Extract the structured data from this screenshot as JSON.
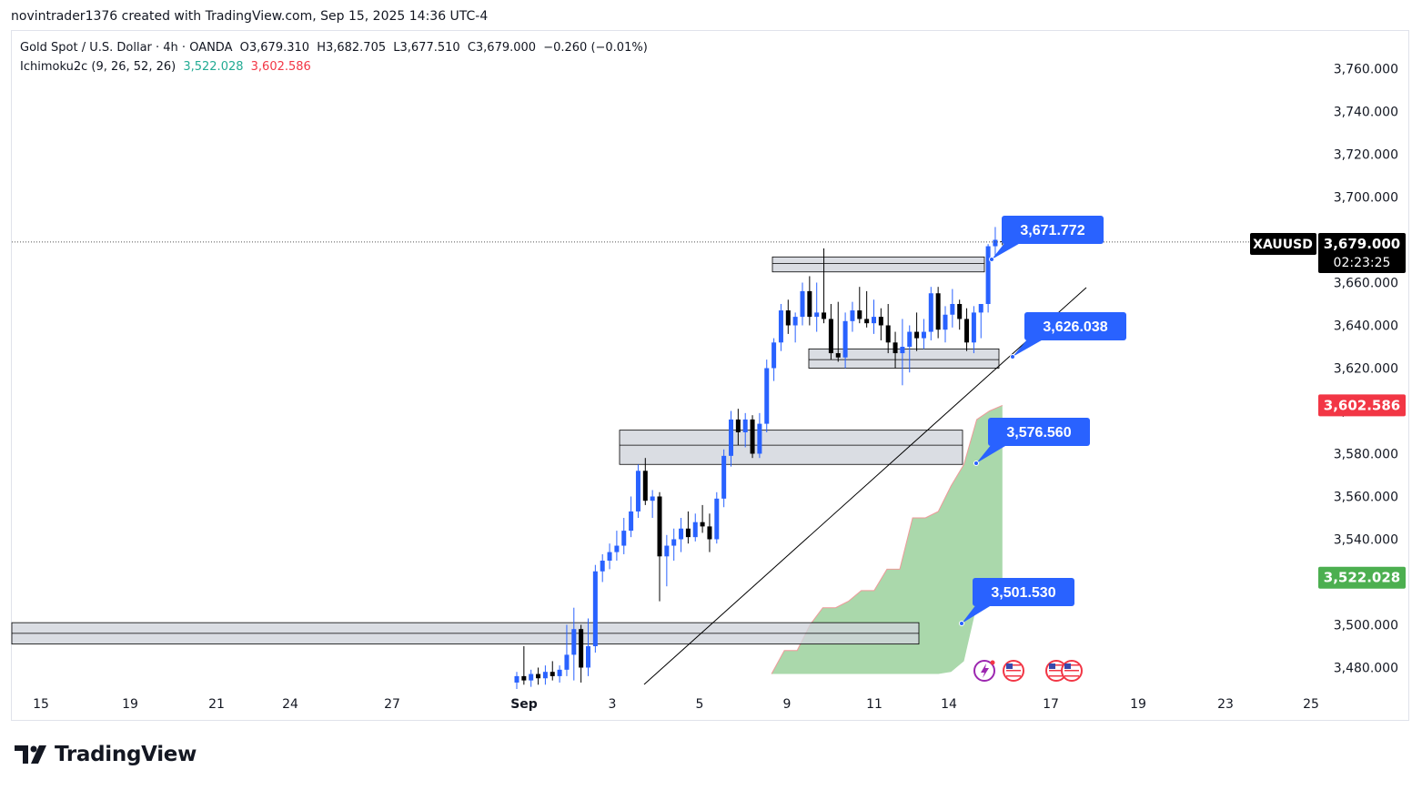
{
  "header": {
    "attribution": "novintrader1376 created with TradingView.com, Sep 15, 2025 14:36 UTC-4"
  },
  "legend": {
    "symbol_line": "Gold Spot / U.S. Dollar · 4h · OANDA",
    "open": "O3,679.310",
    "high": "H3,682.705",
    "low": "L3,677.510",
    "close": "C3,679.000",
    "change": "−0.260 (−0.01%)",
    "indicator": "Ichimoku2c (9, 26, 52, 26)",
    "ind_value_1": "3,522.028",
    "ind_value_2": "3,602.586"
  },
  "footer": {
    "brand": "TradingView"
  },
  "colors": {
    "up": "#2962ff",
    "down": "#000000",
    "cloud_fill": "#a5d6a7",
    "cloud_edge": "#ef9a9a",
    "zone_fill": "#d1d4dc",
    "callout": "#2962ff",
    "red_label": "#f23645",
    "green_label": "#4caf50"
  },
  "chart_data": {
    "type": "candlestick",
    "symbol": "XAUUSD",
    "timeframe": "4h",
    "ylim": [
      3470,
      3770
    ],
    "y_ticks": [
      3480,
      3500,
      3520,
      3540,
      3560,
      3580,
      3600,
      3620,
      3640,
      3660,
      3680,
      3700,
      3720,
      3740,
      3760
    ],
    "y_tick_labels": [
      "3,480.000",
      "3,500.000",
      "3,520.000",
      "3,540.000",
      "3,560.000",
      "3,580.000",
      "3,600.000",
      "3,620.000",
      "3,640.000",
      "3,660.000",
      "3,680.000",
      "3,700.000",
      "3,720.000",
      "3,740.000",
      "3,760.000"
    ],
    "x_ticks": [
      "15",
      "19",
      "21",
      "24",
      "27",
      "Sep",
      "3",
      "5",
      "9",
      "11",
      "14",
      "17",
      "19",
      "23",
      "25"
    ],
    "x_ticks_date": [
      "2025-08-15",
      "2025-08-19",
      "2025-08-21",
      "2025-08-24",
      "2025-08-27",
      "2025-09-01",
      "2025-09-03",
      "2025-09-05",
      "2025-09-09",
      "2025-09-11",
      "2025-09-14",
      "2025-09-17",
      "2025-09-19",
      "2025-09-23",
      "2025-09-25"
    ],
    "price_label": {
      "symbol": "XAUUSD",
      "price": "3,679.000",
      "countdown": "02:23:25",
      "value": 3679.0
    },
    "indicator_labels": [
      {
        "text": "3,602.586",
        "value": 3602.586,
        "color": "red"
      },
      {
        "text": "3,522.028",
        "value": 3522.028,
        "color": "green"
      }
    ],
    "candles": [
      [
        3473,
        3478,
        3470,
        3476
      ],
      [
        3476,
        3490,
        3472,
        3474
      ],
      [
        3474,
        3479,
        3471,
        3477
      ],
      [
        3477,
        3480,
        3472,
        3475
      ],
      [
        3475,
        3481,
        3472,
        3478
      ],
      [
        3478,
        3483,
        3474,
        3476
      ],
      [
        3476,
        3481,
        3473,
        3479
      ],
      [
        3479,
        3500,
        3476,
        3486
      ],
      [
        3486,
        3508,
        3474,
        3498
      ],
      [
        3498,
        3500,
        3473,
        3480
      ],
      [
        3480,
        3503,
        3476,
        3490
      ],
      [
        3490,
        3528,
        3487,
        3525
      ],
      [
        3525,
        3533,
        3520,
        3530
      ],
      [
        3530,
        3538,
        3526,
        3534
      ],
      [
        3534,
        3544,
        3530,
        3537
      ],
      [
        3537,
        3550,
        3533,
        3544
      ],
      [
        3544,
        3560,
        3541,
        3553
      ],
      [
        3553,
        3575,
        3550,
        3572
      ],
      [
        3572,
        3578,
        3556,
        3558
      ],
      [
        3558,
        3563,
        3550,
        3560
      ],
      [
        3560,
        3562,
        3511,
        3532
      ],
      [
        3532,
        3542,
        3518,
        3537
      ],
      [
        3537,
        3545,
        3530,
        3540
      ],
      [
        3540,
        3550,
        3534,
        3545
      ],
      [
        3545,
        3553,
        3538,
        3541
      ],
      [
        3541,
        3552,
        3539,
        3548
      ],
      [
        3548,
        3556,
        3543,
        3546
      ],
      [
        3546,
        3552,
        3534,
        3540
      ],
      [
        3540,
        3562,
        3538,
        3559
      ],
      [
        3559,
        3582,
        3555,
        3579
      ],
      [
        3579,
        3600,
        3574,
        3596
      ],
      [
        3596,
        3601,
        3584,
        3590
      ],
      [
        3590,
        3599,
        3583,
        3596
      ],
      [
        3596,
        3598,
        3578,
        3580
      ],
      [
        3580,
        3599,
        3578,
        3594
      ],
      [
        3594,
        3624,
        3590,
        3620
      ],
      [
        3620,
        3634,
        3614,
        3632
      ],
      [
        3632,
        3650,
        3628,
        3647
      ],
      [
        3647,
        3652,
        3636,
        3640
      ],
      [
        3640,
        3646,
        3632,
        3644
      ],
      [
        3644,
        3660,
        3640,
        3656
      ],
      [
        3656,
        3663,
        3640,
        3644
      ],
      [
        3644,
        3660,
        3637,
        3646
      ],
      [
        3646,
        3676,
        3641,
        3643
      ],
      [
        3643,
        3650,
        3624,
        3627
      ],
      [
        3627,
        3651,
        3623,
        3625
      ],
      [
        3625,
        3646,
        3620,
        3642
      ],
      [
        3642,
        3651,
        3637,
        3647
      ],
      [
        3647,
        3658,
        3641,
        3643
      ],
      [
        3643,
        3656,
        3639,
        3641
      ],
      [
        3641,
        3652,
        3636,
        3644
      ],
      [
        3644,
        3648,
        3633,
        3640
      ],
      [
        3640,
        3650,
        3627,
        3632
      ],
      [
        3632,
        3637,
        3620,
        3627
      ],
      [
        3627,
        3643,
        3612,
        3630
      ],
      [
        3630,
        3640,
        3618,
        3637
      ],
      [
        3637,
        3646,
        3628,
        3634
      ],
      [
        3634,
        3643,
        3629,
        3637
      ],
      [
        3637,
        3658,
        3633,
        3655
      ],
      [
        3655,
        3658,
        3634,
        3638
      ],
      [
        3638,
        3649,
        3632,
        3645
      ],
      [
        3645,
        3657,
        3639,
        3650
      ],
      [
        3650,
        3652,
        3638,
        3643
      ],
      [
        3643,
        3648,
        3628,
        3632
      ],
      [
        3632,
        3649,
        3627,
        3646
      ],
      [
        3646,
        3650,
        3634,
        3650
      ],
      [
        3650,
        3678,
        3646,
        3677
      ],
      [
        3677,
        3686,
        3672,
        3680
      ],
      [
        3679.31,
        3682.705,
        3677.51,
        3679.0
      ]
    ],
    "zones": [
      {
        "label": "zone-top",
        "y1": 3665,
        "y2": 3672,
        "mid": 3669
      },
      {
        "label": "zone-mid",
        "y1": 3620,
        "y2": 3629,
        "mid": 3624
      },
      {
        "label": "zone-low",
        "y1": 3575,
        "y2": 3591,
        "mid": 3584
      },
      {
        "label": "zone-bottom",
        "y1": 3491,
        "y2": 3501,
        "mid": 3496
      }
    ],
    "trendline": [
      [
        3475,
        3475
      ],
      [
        3640,
        3660
      ]
    ],
    "cloud": {
      "upper": [
        3477,
        3488,
        3488,
        3500,
        3508,
        3508,
        3511,
        3516,
        3516,
        3526,
        3526,
        3550,
        3550,
        3553,
        3565,
        3575,
        3596,
        3600,
        3602.586
      ],
      "lower": [
        3477,
        3477,
        3477,
        3477,
        3477,
        3477,
        3477,
        3477,
        3477,
        3477,
        3477,
        3477,
        3477,
        3477,
        3478,
        3483,
        3509,
        3512,
        3522.028
      ]
    },
    "callouts": [
      {
        "text": "3,671.772",
        "value": 3671.772
      },
      {
        "text": "3,626.038",
        "value": 3626.038
      },
      {
        "text": "3,576.560",
        "value": 3576.56
      },
      {
        "text": "3,501.530",
        "value": 3501.53
      }
    ]
  }
}
